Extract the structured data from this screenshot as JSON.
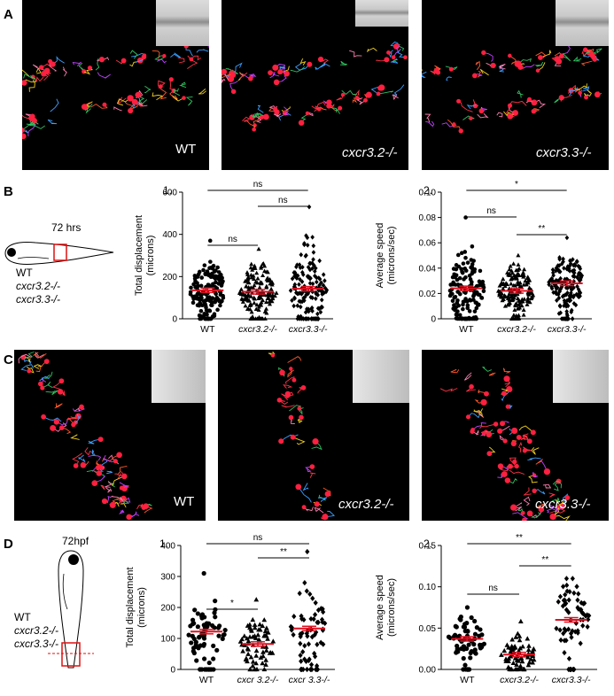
{
  "panels": {
    "A": {
      "letter": "A",
      "labels": [
        "WT",
        "cxcr3.2-/-",
        "cxcr3.3-/-"
      ]
    },
    "B": {
      "letter": "B",
      "stage": "72 hrs",
      "genotypes": [
        "WT",
        "cxcr3.2-/-",
        "cxcr3.3-/-"
      ]
    },
    "C": {
      "letter": "C",
      "labels": [
        "WT",
        "cxcr3.2-/-",
        "cxcr3.3-/-"
      ]
    },
    "D": {
      "letter": "D",
      "stage": "72hpf",
      "genotypes": [
        "WT",
        "cxcr3.2-/-",
        "cxcr3.3-/-"
      ]
    }
  },
  "chart_data": [
    {
      "id": "B1",
      "type": "scatter",
      "number": "1.",
      "ylabel_lines": [
        "Total displacement",
        "(microns)"
      ],
      "categories": [
        "WT",
        "cxcr3.2-/-",
        "cxcr3.3-/-"
      ],
      "ylim": [
        0,
        600
      ],
      "yticks": [
        0,
        200,
        400,
        600
      ],
      "means": [
        135,
        128,
        142
      ],
      "markers": [
        "circle",
        "triangle",
        "diamond"
      ],
      "spread": [
        [
          0,
          370
        ],
        [
          0,
          330
        ],
        [
          0,
          530
        ]
      ],
      "significance": [
        {
          "from": 0,
          "to": 2,
          "text": "ns"
        },
        {
          "from": 1,
          "to": 2,
          "text": "ns"
        },
        {
          "from": 0,
          "to": 1,
          "text": "ns"
        }
      ]
    },
    {
      "id": "B2",
      "type": "scatter",
      "number": "2.",
      "ylabel_lines": [
        "Average speed",
        "(microns/sec)"
      ],
      "categories": [
        "WT",
        "cxcr3.2-/-",
        "cxcr3.3-/-"
      ],
      "ylim": [
        0,
        0.1
      ],
      "yticks": [
        "0",
        "0.02",
        "0.04",
        "0.06",
        "0.08",
        "0.10"
      ],
      "means": [
        0.024,
        0.022,
        0.028
      ],
      "markers": [
        "circle",
        "triangle",
        "diamond"
      ],
      "spread": [
        [
          0,
          0.08
        ],
        [
          0,
          0.05
        ],
        [
          0,
          0.064
        ]
      ],
      "significance": [
        {
          "from": 0,
          "to": 2,
          "text": "*"
        },
        {
          "from": 0,
          "to": 1,
          "text": "ns"
        },
        {
          "from": 1,
          "to": 2,
          "text": "**"
        }
      ]
    },
    {
      "id": "D1",
      "type": "scatter",
      "number": "1.",
      "ylabel_lines": [
        "Total displacement",
        "(microns)"
      ],
      "categories": [
        "WT",
        "cxcr 3.2-/-",
        "cxcr 3.3-/-"
      ],
      "ylim": [
        0,
        400
      ],
      "yticks": [
        0,
        100,
        200,
        300,
        400
      ],
      "means": [
        122,
        82,
        132
      ],
      "markers": [
        "circle",
        "triangle",
        "diamond"
      ],
      "spread": [
        [
          0,
          310
        ],
        [
          0,
          225
        ],
        [
          0,
          380
        ]
      ],
      "significance": [
        {
          "from": 0,
          "to": 2,
          "text": "ns"
        },
        {
          "from": 1,
          "to": 2,
          "text": "**"
        },
        {
          "from": 0,
          "to": 1,
          "text": "*"
        }
      ]
    },
    {
      "id": "D2",
      "type": "scatter",
      "number": "2.",
      "ylabel_lines": [
        "Average speed",
        "(microns/sec)"
      ],
      "categories": [
        "WT",
        "cxcr3.2-/-",
        "cxcr3.3-/-"
      ],
      "ylim": [
        0,
        0.15
      ],
      "yticks": [
        "0.00",
        "0.05",
        "0.10",
        "0.15"
      ],
      "means": [
        0.037,
        0.018,
        0.06
      ],
      "markers": [
        "circle",
        "triangle",
        "diamond"
      ],
      "spread": [
        [
          0,
          0.075
        ],
        [
          0,
          0.058
        ],
        [
          0,
          0.11
        ]
      ],
      "significance": [
        {
          "from": 0,
          "to": 2,
          "text": "**"
        },
        {
          "from": 0,
          "to": 1,
          "text": "ns"
        },
        {
          "from": 1,
          "to": 2,
          "text": "**"
        }
      ]
    }
  ]
}
